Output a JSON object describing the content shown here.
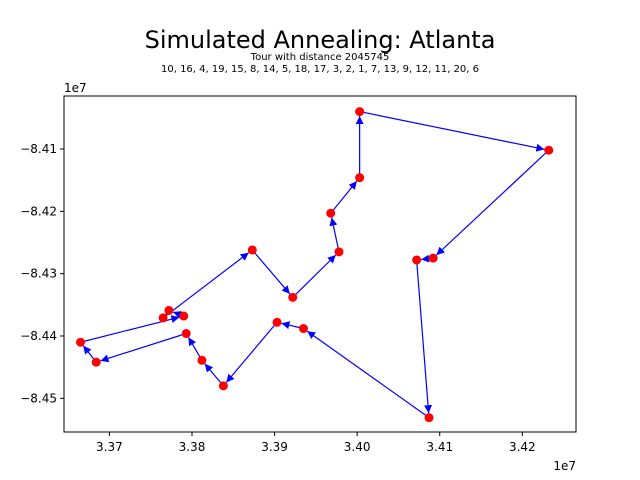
{
  "chart_data": {
    "type": "line",
    "title": "Simulated Annealing: Atlanta",
    "subtitle_line1": "Tour with distance 2045745",
    "subtitle_line2": "10, 16, 4, 19, 15, 8, 14, 5, 18, 17, 3, 2, 1, 7, 13, 9, 12, 11, 20, 6",
    "xlabel": "",
    "ylabel": "",
    "x_offset_label": "1e7",
    "y_offset_label": "1e7",
    "x_multiplier": 10000000,
    "y_multiplier": 10000000,
    "xlim": [
      3.3645,
      3.4265
    ],
    "ylim": [
      -8.4554,
      -8.4015
    ],
    "xticks": [
      {
        "value": 3.37,
        "label": "3.37"
      },
      {
        "value": 3.38,
        "label": "3.38"
      },
      {
        "value": 3.39,
        "label": "3.39"
      },
      {
        "value": 3.4,
        "label": "3.40"
      },
      {
        "value": 3.41,
        "label": "3.41"
      },
      {
        "value": 3.42,
        "label": "3.42"
      }
    ],
    "yticks": [
      {
        "value": -8.41,
        "label": "−8.41"
      },
      {
        "value": -8.42,
        "label": "−8.42"
      },
      {
        "value": -8.43,
        "label": "−8.43"
      },
      {
        "value": -8.44,
        "label": "−8.44"
      },
      {
        "value": -8.45,
        "label": "−8.45"
      }
    ],
    "grid": false,
    "point_color": "#ff0000",
    "edge_color": "#0000ff",
    "tour_points": [
      {
        "x": 3.4003,
        "y": -8.404
      },
      {
        "x": 3.4232,
        "y": -8.4102
      },
      {
        "x": 3.4092,
        "y": -8.4275
      },
      {
        "x": 3.4072,
        "y": -8.4278
      },
      {
        "x": 3.4087,
        "y": -8.4531
      },
      {
        "x": 3.3935,
        "y": -8.4388
      },
      {
        "x": 3.3903,
        "y": -8.4378
      },
      {
        "x": 3.3838,
        "y": -8.448
      },
      {
        "x": 3.3812,
        "y": -8.4439
      },
      {
        "x": 3.3793,
        "y": -8.4396
      },
      {
        "x": 3.3684,
        "y": -8.4442
      },
      {
        "x": 3.3665,
        "y": -8.441
      },
      {
        "x": 3.379,
        "y": -8.4368
      },
      {
        "x": 3.3772,
        "y": -8.4359
      },
      {
        "x": 3.3765,
        "y": -8.4371
      },
      {
        "x": 3.3873,
        "y": -8.4262
      },
      {
        "x": 3.3922,
        "y": -8.4338
      },
      {
        "x": 3.3978,
        "y": -8.4265
      },
      {
        "x": 3.3968,
        "y": -8.4203
      },
      {
        "x": 3.4003,
        "y": -8.4146
      }
    ]
  }
}
